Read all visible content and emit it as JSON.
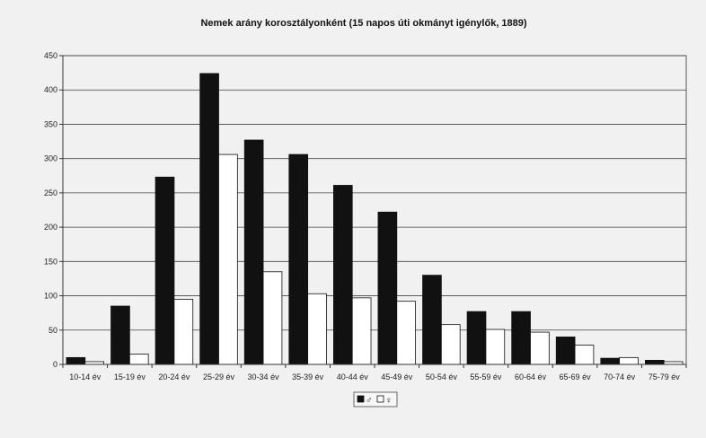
{
  "chart_data": {
    "type": "bar",
    "title": "Nemek arány korosztályonként (15 napos úti okmányt igénylők, 1889)",
    "xlabel": "",
    "ylabel": "",
    "ylim": [
      0,
      450
    ],
    "yticks": [
      0,
      50,
      100,
      150,
      200,
      250,
      300,
      350,
      400,
      450
    ],
    "grid": true,
    "legend": "bottom",
    "categories": [
      "10-14 év",
      "15-19 év",
      "20-24 év",
      "25-29 év",
      "30-34 év",
      "35-39 év",
      "40-44 év",
      "45-49 év",
      "50-54 év",
      "55-59 év",
      "60-64 év",
      "65-69 év",
      "70-74 év",
      "75-79 év"
    ],
    "series": [
      {
        "name": "♂",
        "color": "#111111",
        "values": [
          10,
          85,
          273,
          424,
          327,
          306,
          261,
          222,
          130,
          77,
          77,
          40,
          9,
          6
        ]
      },
      {
        "name": "♀",
        "color": "#ffffff",
        "values": [
          4,
          15,
          95,
          306,
          135,
          103,
          97,
          92,
          58,
          51,
          47,
          28,
          10,
          4
        ]
      }
    ]
  }
}
